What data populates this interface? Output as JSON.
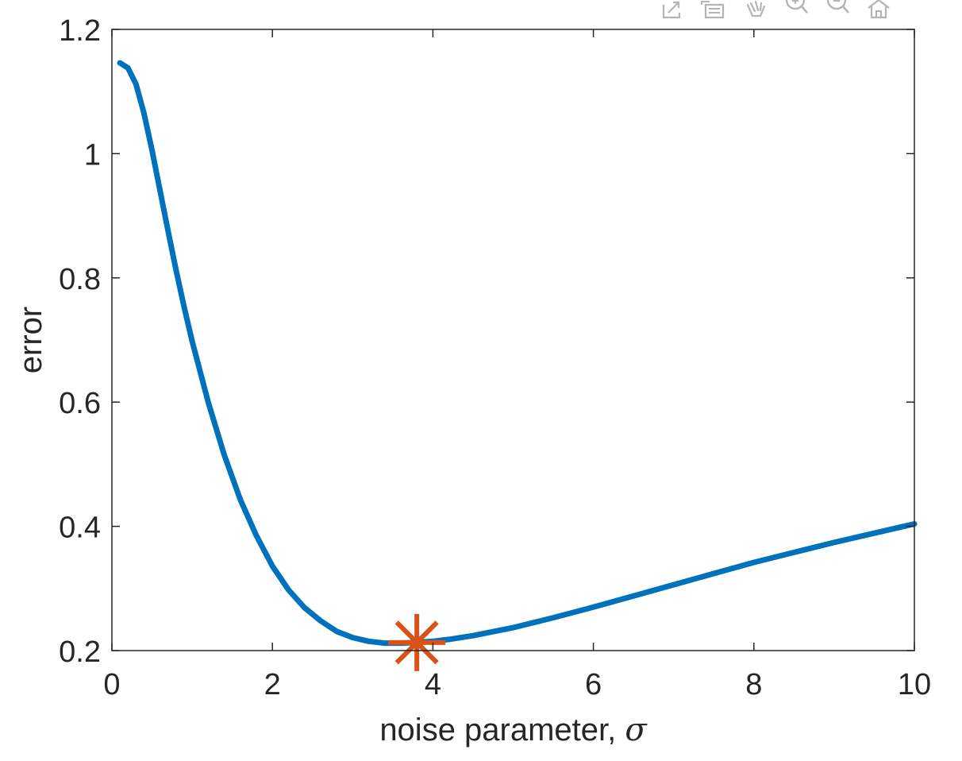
{
  "toolbar": {
    "icons": [
      "export-icon",
      "brush-icon",
      "pan-icon",
      "zoom-in-icon",
      "zoom-out-icon",
      "home-icon"
    ]
  },
  "colors": {
    "curve": "#0072BD",
    "marker": "#D95319",
    "axis": "#262626",
    "toolbar_icon": "#b4b4b4"
  },
  "chart_data": {
    "type": "line",
    "xlabel": "noise parameter, ",
    "xlabel_symbol": "σ",
    "ylabel": "error",
    "xlim": [
      0,
      10
    ],
    "ylim": [
      0.2,
      1.2
    ],
    "xticks": [
      0,
      2,
      4,
      6,
      8,
      10
    ],
    "xtick_labels": [
      "0",
      "2",
      "4",
      "6",
      "8",
      "10"
    ],
    "yticks": [
      0.2,
      0.4,
      0.6,
      0.8,
      1.0,
      1.2
    ],
    "ytick_labels": [
      "0.2",
      "0.4",
      "0.6",
      "0.8",
      "1",
      "1.2"
    ],
    "grid": false,
    "series": [
      {
        "x": [
          0.1,
          0.2,
          0.3,
          0.4,
          0.5,
          0.6,
          0.7,
          0.8,
          0.9,
          1.0,
          1.2,
          1.4,
          1.6,
          1.8,
          2.0,
          2.2,
          2.4,
          2.6,
          2.8,
          3.0,
          3.2,
          3.4,
          3.6,
          3.8,
          4.0,
          4.2,
          4.5,
          5.0,
          5.5,
          6.0,
          6.5,
          7.0,
          7.5,
          8.0,
          8.5,
          9.0,
          9.5,
          10.0
        ],
        "y": [
          1.146,
          1.138,
          1.112,
          1.065,
          1.005,
          0.94,
          0.875,
          0.812,
          0.753,
          0.698,
          0.6,
          0.515,
          0.443,
          0.385,
          0.336,
          0.298,
          0.269,
          0.248,
          0.231,
          0.221,
          0.215,
          0.212,
          0.212,
          0.213,
          0.215,
          0.218,
          0.224,
          0.237,
          0.253,
          0.27,
          0.288,
          0.306,
          0.324,
          0.342,
          0.358,
          0.374,
          0.389,
          0.404
        ]
      }
    ],
    "marker_point": {
      "x": 3.8,
      "y": 0.213,
      "symbol": "asterisk"
    }
  }
}
